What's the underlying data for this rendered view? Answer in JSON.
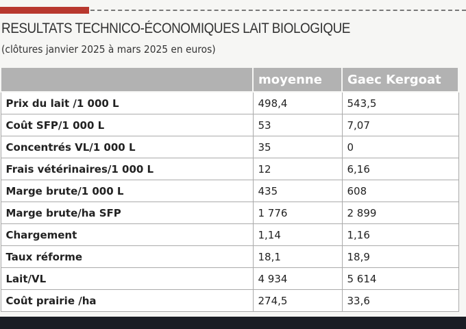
{
  "header": {
    "title": "RESULTATS TECHNICO-ÉCONOMIQUES LAIT BIOLOGIQUE",
    "subtitle": "(clôtures janvier 2025 à mars 2025 en euros)"
  },
  "table": {
    "columns": [
      "moyenne",
      "Gaec Kergoat"
    ],
    "rows": [
      [
        "Prix du lait /1 000 L",
        "498,4",
        "543,5"
      ],
      [
        "Coût SFP/1 000 L",
        "53",
        "7,07"
      ],
      [
        "Concentrés VL/1 000 L",
        "35",
        "0"
      ],
      [
        "Frais vétérinaires/1 000 L",
        "12",
        "6,16"
      ],
      [
        "Marge brute/1 000 L",
        "435",
        "608"
      ],
      [
        "Marge brute/ha SFP",
        "1 776",
        "2 899"
      ],
      [
        "Chargement",
        "1,14",
        "1,16"
      ],
      [
        "Taux réforme",
        "18,1",
        "18,9"
      ],
      [
        "Lait/VL",
        "4 934",
        "5 614"
      ],
      [
        "Coût prairie /ha",
        "274,5",
        "33,6"
      ]
    ]
  }
}
